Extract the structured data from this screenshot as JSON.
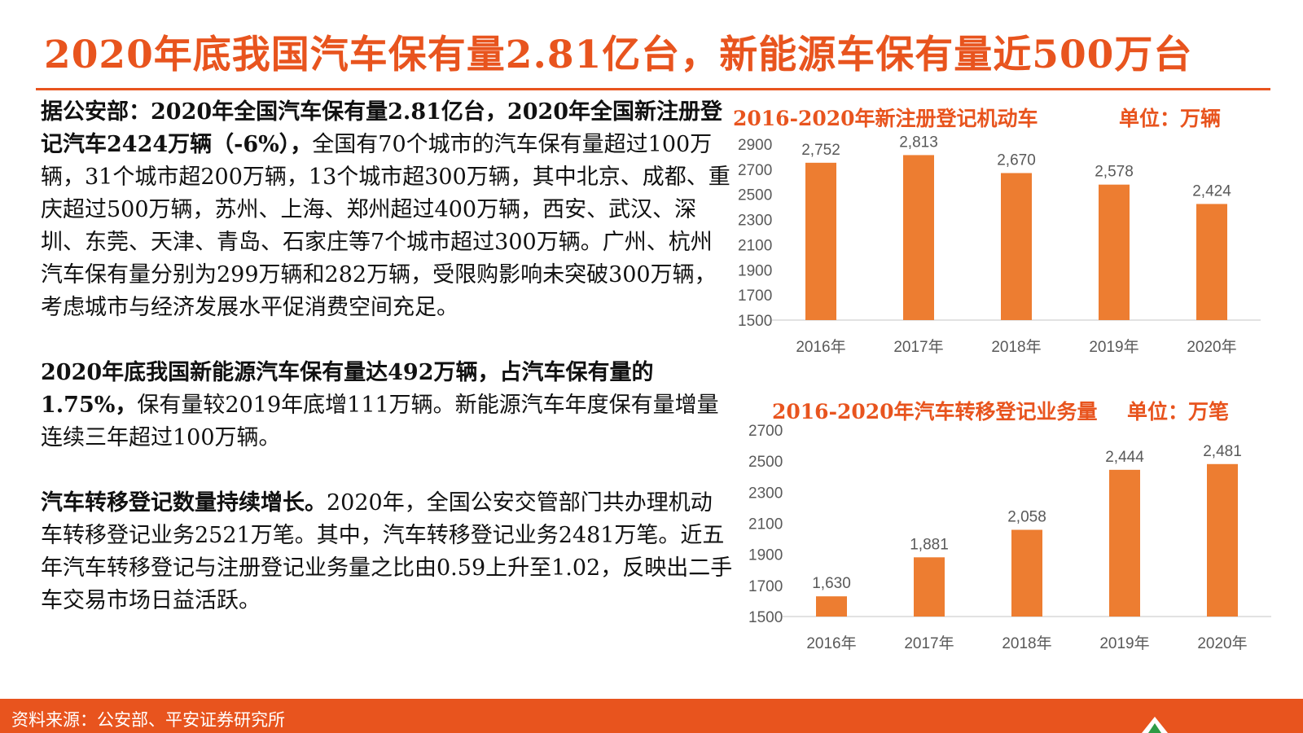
{
  "title": "2020年底我国汽车保有量2.81亿台，新能源车保有量近500万台",
  "paragraphs": [
    {
      "lead": "据公安部：2020年全国汽车保有量2.81亿台，2020年全国新注册登记汽车2424万辆（-6%），",
      "body": "全国有70个城市的汽车保有量超过100万辆，31个城市超200万辆，13个城市超300万辆，其中北京、成都、重庆超过500万辆，苏州、上海、郑州超过400万辆，西安、武汉、深圳、东莞、天津、青岛、石家庄等7个城市超过300万辆。广州、杭州汽车保有量分别为299万辆和282万辆，受限购影响未突破300万辆，考虑城市与经济发展水平促消费空间充足。"
    },
    {
      "lead": "2020年底我国新能源汽车保有量达492万辆，占汽车保有量的1.75%，",
      "body": "保有量较2019年底增111万辆。新能源汽车年度保有量增量连续三年超过100万辆。"
    },
    {
      "lead": "汽车转移登记数量持续增长。",
      "body": "2020年，全国公安交管部门共办理机动车转移登记业务2521万笔。其中，汽车转移登记业务2481万笔。近五年汽车转移登记与注册登记业务量之比由0.59上升至1.02，反映出二手车交易市场日益活跃。"
    }
  ],
  "chart_titles": [
    "2016-2020年新注册登记机动车",
    "2016-2020年汽车转移登记业务量"
  ],
  "chart_units": [
    "单位：万辆",
    "单位：万笔"
  ],
  "chart_data": [
    {
      "type": "bar",
      "title": "2016-2020年新注册登记机动车",
      "unit": "单位：万辆",
      "categories": [
        "2016年",
        "2017年",
        "2018年",
        "2019年",
        "2020年"
      ],
      "values": [
        2752,
        2813,
        2670,
        2578,
        2424
      ],
      "value_labels": [
        "2,752",
        "2,813",
        "2,670",
        "2,578",
        "2,424"
      ],
      "ylim": [
        1500,
        2900
      ],
      "yticks": [
        2900,
        2700,
        2500,
        2300,
        2100,
        1900,
        1700,
        1500
      ],
      "grid": false,
      "color": "#ED7D31"
    },
    {
      "type": "bar",
      "title": "2016-2020年汽车转移登记业务量",
      "unit": "单位：万笔",
      "categories": [
        "2016年",
        "2017年",
        "2018年",
        "2019年",
        "2020年"
      ],
      "values": [
        1630,
        1881,
        2058,
        2444,
        2481
      ],
      "value_labels": [
        "1,630",
        "1,881",
        "2,058",
        "2,444",
        "2,481"
      ],
      "ylim": [
        1500,
        2700
      ],
      "yticks": [
        2700,
        2500,
        2300,
        2100,
        1900,
        1700,
        1500
      ],
      "grid": false,
      "color": "#ED7D31"
    }
  ],
  "footer": {
    "source": "资料来源：公安部、平安证券研究所",
    "logo_icon": "ping-an-logo-icon"
  },
  "colors": {
    "accent": "#E8541E",
    "bar": "#ED7D31",
    "axis_text": "#595959"
  }
}
